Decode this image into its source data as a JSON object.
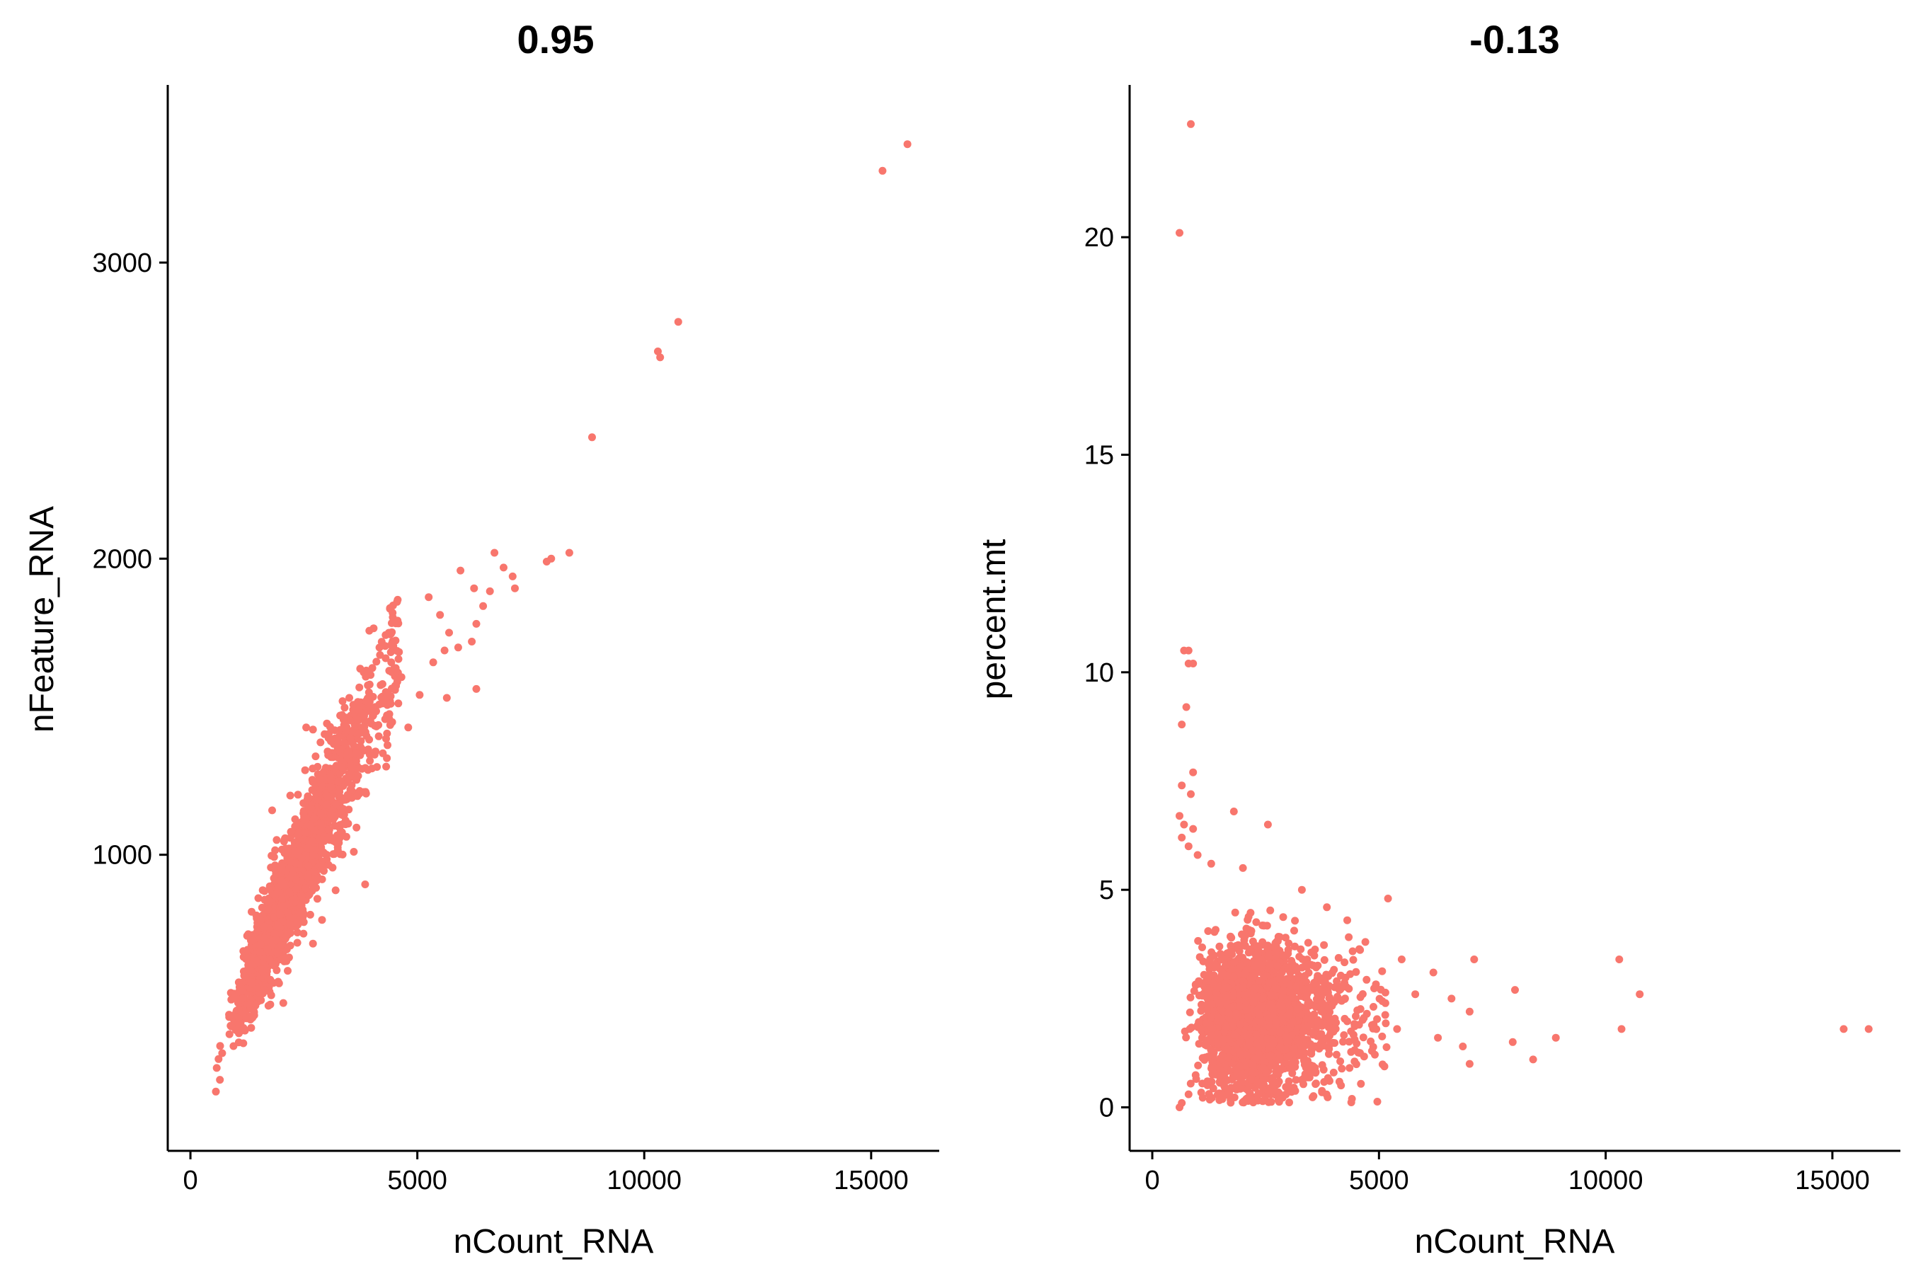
{
  "chart_data": [
    {
      "type": "scatter",
      "title": "0.95",
      "xlabel": "nCount_RNA",
      "ylabel": "nFeature_RNA",
      "xlim": [
        -500,
        16500
      ],
      "ylim": [
        0,
        3600
      ],
      "xticks": [
        0,
        5000,
        10000,
        15000
      ],
      "xtick_labels": [
        "0",
        "5000",
        "10000",
        "15000"
      ],
      "yticks": [
        1000,
        2000,
        3000
      ],
      "ytick_labels": [
        "1000",
        "2000",
        "3000"
      ],
      "grid": false,
      "legend": "none",
      "color": "#F8766D",
      "points": [
        [
          15800,
          3400
        ],
        [
          15250,
          3310
        ],
        [
          10750,
          2800
        ],
        [
          10300,
          2700
        ],
        [
          10350,
          2680
        ],
        [
          8850,
          2410
        ],
        [
          8350,
          2020
        ],
        [
          7950,
          2000
        ],
        [
          7850,
          1990
        ],
        [
          6700,
          2020
        ],
        [
          6900,
          1970
        ],
        [
          7100,
          1940
        ],
        [
          7150,
          1900
        ],
        [
          6600,
          1890
        ],
        [
          5950,
          1960
        ],
        [
          6250,
          1900
        ],
        [
          6450,
          1840
        ],
        [
          6300,
          1780
        ],
        [
          6200,
          1720
        ],
        [
          5900,
          1700
        ],
        [
          5250,
          1870
        ],
        [
          5500,
          1810
        ],
        [
          5700,
          1750
        ],
        [
          5600,
          1690
        ],
        [
          5350,
          1650
        ],
        [
          4650,
          1600
        ],
        [
          3900,
          1620
        ],
        [
          3500,
          1530
        ],
        [
          4150,
          1400
        ],
        [
          3300,
          1470
        ],
        [
          2550,
          1430
        ],
        [
          4800,
          1430
        ],
        [
          5050,
          1540
        ],
        [
          5650,
          1530
        ],
        [
          6300,
          1560
        ],
        [
          1800,
          1150
        ],
        [
          1900,
          1050
        ],
        [
          2200,
          1200
        ],
        [
          3100,
          1230
        ],
        [
          3200,
          880
        ],
        [
          3600,
          1010
        ],
        [
          3850,
          900
        ],
        [
          2900,
          780
        ],
        [
          2450,
          830
        ],
        [
          1900,
          610
        ],
        [
          700,
          330
        ],
        [
          620,
          310
        ],
        [
          580,
          280
        ],
        [
          650,
          240
        ],
        [
          560,
          200
        ],
        [
          900,
          420
        ],
        [
          850,
          460
        ],
        [
          1150,
          540
        ],
        [
          1300,
          610
        ],
        [
          1050,
          500
        ],
        [
          1400,
          470
        ],
        [
          2100,
          650
        ],
        [
          2700,
          700
        ]
      ],
      "cluster": {
        "description_note": "dense cloud along nFeature ≈ 0.34·nCount + 140",
        "n": 2200,
        "x_range": [
          600,
          4600
        ],
        "slope": 0.34,
        "intercept": 140,
        "spread": 75
      }
    },
    {
      "type": "scatter",
      "title": "-0.13",
      "xlabel": "nCount_RNA",
      "ylabel": "percent.mt",
      "xlim": [
        -500,
        16500
      ],
      "ylim": [
        -1,
        23.5
      ],
      "xticks": [
        0,
        5000,
        10000,
        15000
      ],
      "xtick_labels": [
        "0",
        "5000",
        "10000",
        "15000"
      ],
      "yticks": [
        0,
        5,
        10,
        15,
        20
      ],
      "ytick_labels": [
        "0",
        "5",
        "10",
        "15",
        "20"
      ],
      "grid": false,
      "legend": "none",
      "color": "#F8766D",
      "points": [
        [
          850,
          22.6
        ],
        [
          600,
          20.1
        ],
        [
          700,
          10.5
        ],
        [
          800,
          10.5
        ],
        [
          900,
          10.2
        ],
        [
          800,
          10.2
        ],
        [
          750,
          9.2
        ],
        [
          650,
          8.8
        ],
        [
          900,
          7.7
        ],
        [
          650,
          7.4
        ],
        [
          850,
          7.2
        ],
        [
          600,
          6.7
        ],
        [
          700,
          6.5
        ],
        [
          900,
          6.4
        ],
        [
          650,
          6.2
        ],
        [
          1800,
          6.8
        ],
        [
          2550,
          6.5
        ],
        [
          800,
          6.0
        ],
        [
          1000,
          5.8
        ],
        [
          1300,
          5.6
        ],
        [
          2000,
          5.5
        ],
        [
          3300,
          5.0
        ],
        [
          3850,
          4.6
        ],
        [
          5200,
          4.8
        ],
        [
          4300,
          4.3
        ],
        [
          4700,
          3.8
        ],
        [
          5500,
          3.4
        ],
        [
          7100,
          3.4
        ],
        [
          6200,
          3.1
        ],
        [
          6600,
          2.5
        ],
        [
          7000,
          2.2
        ],
        [
          5800,
          2.6
        ],
        [
          5400,
          1.8
        ],
        [
          6300,
          1.6
        ],
        [
          6850,
          1.4
        ],
        [
          7000,
          1.0
        ],
        [
          8000,
          2.7
        ],
        [
          7950,
          1.5
        ],
        [
          8400,
          1.1
        ],
        [
          8900,
          1.6
        ],
        [
          10300,
          3.4
        ],
        [
          10750,
          2.6
        ],
        [
          10350,
          1.8
        ],
        [
          15250,
          1.8
        ],
        [
          15800,
          1.8
        ],
        [
          600,
          0.0
        ],
        [
          650,
          0.1
        ],
        [
          800,
          0.3
        ],
        [
          1300,
          0.6
        ],
        [
          2100,
          0.4
        ],
        [
          3000,
          0.5
        ],
        [
          4000,
          0.8
        ]
      ],
      "cluster": {
        "description_note": "dense cloud centered near nCount 2300, percent.mt 2",
        "n": 2200,
        "x_center": 2300,
        "x_spread": 850,
        "y_center": 2.0,
        "y_spread": 0.85
      }
    }
  ]
}
